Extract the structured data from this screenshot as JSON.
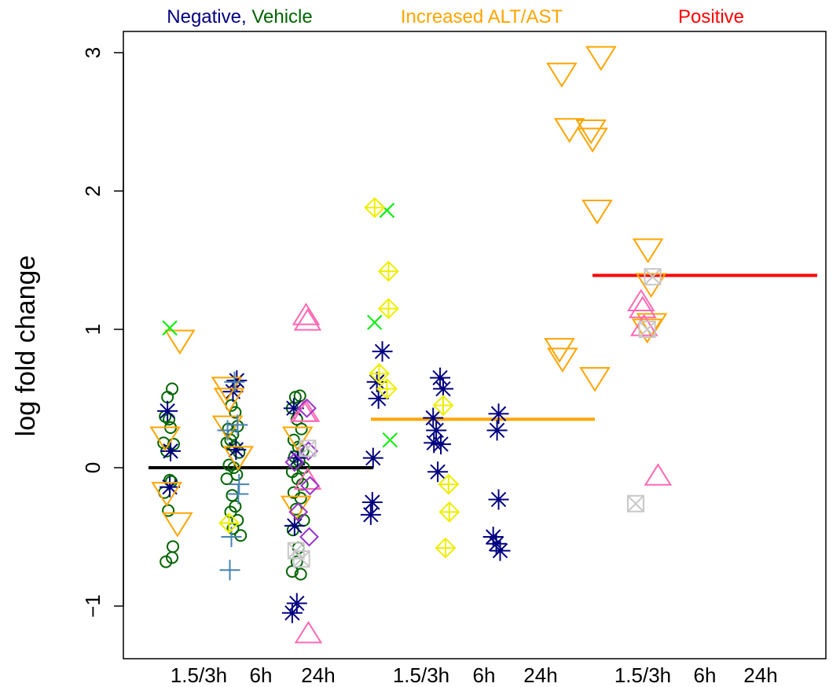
{
  "chart_data": {
    "type": "scatter",
    "ylabel": "log fold change",
    "ylim": [
      -1.4,
      3.15
    ],
    "yticks": [
      -1,
      0,
      1,
      2,
      3
    ],
    "ytick_labels": [
      "−1",
      "0",
      "1",
      "2",
      "3"
    ],
    "grid": false,
    "x_tick_labels": [
      "1.5/3h",
      "6h",
      "24h",
      "1.5/3h",
      "6h",
      "24h",
      "1.5/3h",
      "6h",
      "24h"
    ],
    "group_titles": [
      {
        "parts": [
          {
            "text": "Negative,",
            "color": "#000080"
          },
          {
            "text": "Vehicle",
            "color": "#006400"
          }
        ]
      },
      {
        "parts": [
          {
            "text": "Increased ALT/AST",
            "color": "#FFA500"
          }
        ]
      },
      {
        "parts": [
          {
            "text": "Positive",
            "color": "#FF0000"
          }
        ]
      }
    ],
    "median_lines": [
      {
        "group": "Negative, Vehicle",
        "y": 0.0,
        "color": "#000000"
      },
      {
        "group": "Increased ALT/AST",
        "y": 0.35,
        "color": "#FFA500"
      },
      {
        "group": "Positive",
        "y": 1.39,
        "color": "#FF0000"
      }
    ],
    "marker_colors": {
      "circle": "#006400",
      "asterisk": "#000080",
      "triangle-down": "#FFA500",
      "triangle-up": "#FF69B4",
      "cross": "#00EE00",
      "plus": "#4682B4",
      "diamond-plus": "#EEEE00",
      "diamond": "#9932CC",
      "square-x": "#C8C8C8"
    },
    "points": [
      {
        "x": 0.93,
        "y": 0.51,
        "shape": "circle"
      },
      {
        "x": 0.99,
        "y": 0.57,
        "shape": "circle"
      },
      {
        "x": 0.9,
        "y": 0.37,
        "shape": "circle"
      },
      {
        "x": 0.97,
        "y": 0.29,
        "shape": "circle"
      },
      {
        "x": 0.95,
        "y": 0.35,
        "shape": "circle"
      },
      {
        "x": 0.88,
        "y": 0.18,
        "shape": "circle"
      },
      {
        "x": 1.01,
        "y": 0.17,
        "shape": "circle"
      },
      {
        "x": 0.92,
        "y": 0.12,
        "shape": "circle"
      },
      {
        "x": 0.98,
        "y": -0.1,
        "shape": "circle"
      },
      {
        "x": 0.89,
        "y": -0.18,
        "shape": "circle"
      },
      {
        "x": 0.94,
        "y": -0.31,
        "shape": "circle"
      },
      {
        "x": 1.0,
        "y": -0.57,
        "shape": "circle"
      },
      {
        "x": 0.99,
        "y": -0.65,
        "shape": "circle"
      },
      {
        "x": 0.91,
        "y": -0.68,
        "shape": "circle"
      },
      {
        "x": 0.96,
        "y": -0.09,
        "shape": "circle"
      },
      {
        "x": 1.76,
        "y": 0.45,
        "shape": "circle"
      },
      {
        "x": 1.81,
        "y": 0.4,
        "shape": "circle"
      },
      {
        "x": 1.72,
        "y": 0.28,
        "shape": "circle"
      },
      {
        "x": 1.78,
        "y": 0.24,
        "shape": "circle"
      },
      {
        "x": 1.84,
        "y": 0.3,
        "shape": "circle"
      },
      {
        "x": 1.7,
        "y": 0.18,
        "shape": "circle"
      },
      {
        "x": 1.75,
        "y": 0.2,
        "shape": "circle"
      },
      {
        "x": 1.8,
        "y": 0.15,
        "shape": "circle"
      },
      {
        "x": 1.86,
        "y": 0.11,
        "shape": "circle"
      },
      {
        "x": 1.73,
        "y": 0.02,
        "shape": "circle"
      },
      {
        "x": 1.79,
        "y": 0.0,
        "shape": "circle"
      },
      {
        "x": 1.7,
        "y": -0.08,
        "shape": "circle"
      },
      {
        "x": 1.83,
        "y": -0.05,
        "shape": "circle"
      },
      {
        "x": 1.77,
        "y": -0.2,
        "shape": "circle"
      },
      {
        "x": 1.81,
        "y": -0.28,
        "shape": "circle"
      },
      {
        "x": 1.75,
        "y": -0.32,
        "shape": "circle"
      },
      {
        "x": 1.84,
        "y": -0.38,
        "shape": "circle"
      },
      {
        "x": 1.78,
        "y": -0.44,
        "shape": "circle"
      },
      {
        "x": 1.88,
        "y": -0.49,
        "shape": "circle"
      },
      {
        "x": 2.59,
        "y": 0.51,
        "shape": "circle"
      },
      {
        "x": 2.65,
        "y": 0.52,
        "shape": "circle"
      },
      {
        "x": 2.55,
        "y": 0.43,
        "shape": "circle"
      },
      {
        "x": 2.61,
        "y": 0.35,
        "shape": "circle"
      },
      {
        "x": 2.67,
        "y": 0.28,
        "shape": "circle"
      },
      {
        "x": 2.57,
        "y": 0.2,
        "shape": "circle"
      },
      {
        "x": 2.63,
        "y": 0.15,
        "shape": "circle"
      },
      {
        "x": 2.69,
        "y": 0.12,
        "shape": "circle"
      },
      {
        "x": 2.58,
        "y": 0.08,
        "shape": "circle"
      },
      {
        "x": 2.64,
        "y": 0.05,
        "shape": "circle"
      },
      {
        "x": 2.7,
        "y": 0.0,
        "shape": "circle"
      },
      {
        "x": 2.55,
        "y": -0.03,
        "shape": "circle"
      },
      {
        "x": 2.62,
        "y": -0.08,
        "shape": "circle"
      },
      {
        "x": 2.68,
        "y": -0.12,
        "shape": "circle"
      },
      {
        "x": 2.57,
        "y": -0.18,
        "shape": "circle"
      },
      {
        "x": 2.66,
        "y": -0.22,
        "shape": "circle"
      },
      {
        "x": 2.6,
        "y": -0.3,
        "shape": "circle"
      },
      {
        "x": 2.7,
        "y": -0.38,
        "shape": "circle"
      },
      {
        "x": 2.56,
        "y": -0.45,
        "shape": "circle"
      },
      {
        "x": 2.63,
        "y": -0.58,
        "shape": "circle"
      },
      {
        "x": 2.55,
        "y": -0.75,
        "shape": "circle"
      },
      {
        "x": 2.66,
        "y": -0.77,
        "shape": "circle"
      },
      {
        "x": 2.61,
        "y": -0.68,
        "shape": "circle"
      },
      {
        "x": 0.93,
        "y": 0.41,
        "shape": "asterisk"
      },
      {
        "x": 0.97,
        "y": 0.12,
        "shape": "asterisk"
      },
      {
        "x": 0.96,
        "y": -0.14,
        "shape": "asterisk"
      },
      {
        "x": 1.83,
        "y": 0.63,
        "shape": "asterisk"
      },
      {
        "x": 1.78,
        "y": 0.55,
        "shape": "asterisk"
      },
      {
        "x": 1.82,
        "y": 0.13,
        "shape": "asterisk"
      },
      {
        "x": 2.57,
        "y": 0.43,
        "shape": "asterisk"
      },
      {
        "x": 2.62,
        "y": 0.07,
        "shape": "asterisk"
      },
      {
        "x": 2.58,
        "y": -0.42,
        "shape": "asterisk"
      },
      {
        "x": 2.61,
        "y": -0.98,
        "shape": "asterisk"
      },
      {
        "x": 2.55,
        "y": -1.05,
        "shape": "asterisk"
      },
      {
        "x": 3.6,
        "y": 0.07,
        "shape": "asterisk"
      },
      {
        "x": 3.59,
        "y": -0.25,
        "shape": "asterisk"
      },
      {
        "x": 3.57,
        "y": -0.34,
        "shape": "asterisk"
      },
      {
        "x": 3.65,
        "y": 0.62,
        "shape": "asterisk"
      },
      {
        "x": 3.72,
        "y": 0.84,
        "shape": "asterisk"
      },
      {
        "x": 3.67,
        "y": 0.5,
        "shape": "asterisk"
      },
      {
        "x": 4.38,
        "y": 0.36,
        "shape": "asterisk"
      },
      {
        "x": 4.47,
        "y": 0.65,
        "shape": "asterisk"
      },
      {
        "x": 4.51,
        "y": 0.57,
        "shape": "asterisk"
      },
      {
        "x": 4.42,
        "y": 0.27,
        "shape": "asterisk"
      },
      {
        "x": 4.39,
        "y": 0.18,
        "shape": "asterisk"
      },
      {
        "x": 4.48,
        "y": 0.17,
        "shape": "asterisk"
      },
      {
        "x": 4.44,
        "y": -0.03,
        "shape": "asterisk"
      },
      {
        "x": 5.23,
        "y": 0.39,
        "shape": "asterisk"
      },
      {
        "x": 5.21,
        "y": 0.27,
        "shape": "asterisk"
      },
      {
        "x": 5.23,
        "y": -0.23,
        "shape": "asterisk"
      },
      {
        "x": 5.16,
        "y": -0.5,
        "shape": "asterisk"
      },
      {
        "x": 5.2,
        "y": -0.55,
        "shape": "asterisk"
      },
      {
        "x": 5.25,
        "y": -0.6,
        "shape": "asterisk"
      },
      {
        "x": 0.9,
        "y": 0.22,
        "shape": "triangle-down"
      },
      {
        "x": 0.92,
        "y": -0.18,
        "shape": "triangle-down"
      },
      {
        "x": 1.06,
        "y": -0.4,
        "shape": "triangle-down"
      },
      {
        "x": 1.09,
        "y": 0.92,
        "shape": "triangle-down"
      },
      {
        "x": 1.7,
        "y": 0.58,
        "shape": "triangle-down"
      },
      {
        "x": 1.73,
        "y": 0.5,
        "shape": "triangle-down"
      },
      {
        "x": 1.71,
        "y": 0.3,
        "shape": "triangle-down"
      },
      {
        "x": 1.85,
        "y": 0.08,
        "shape": "triangle-down"
      },
      {
        "x": 2.6,
        "y": -0.28,
        "shape": "triangle-down"
      },
      {
        "x": 2.62,
        "y": 0.22,
        "shape": "triangle-down"
      },
      {
        "x": 6.05,
        "y": 2.85,
        "shape": "triangle-down"
      },
      {
        "x": 6.15,
        "y": 2.45,
        "shape": "triangle-down"
      },
      {
        "x": 6.56,
        "y": 2.97,
        "shape": "triangle-down"
      },
      {
        "x": 6.43,
        "y": 2.44,
        "shape": "triangle-down"
      },
      {
        "x": 6.45,
        "y": 2.38,
        "shape": "triangle-down"
      },
      {
        "x": 6.51,
        "y": 1.86,
        "shape": "triangle-down"
      },
      {
        "x": 6.02,
        "y": 0.86,
        "shape": "triangle-down"
      },
      {
        "x": 6.06,
        "y": 0.79,
        "shape": "triangle-down"
      },
      {
        "x": 6.48,
        "y": 0.65,
        "shape": "triangle-down"
      },
      {
        "x": 7.17,
        "y": 1.58,
        "shape": "triangle-down"
      },
      {
        "x": 7.22,
        "y": 1.04,
        "shape": "triangle-down"
      },
      {
        "x": 7.16,
        "y": 1.0,
        "shape": "triangle-down"
      },
      {
        "x": 7.21,
        "y": 1.33,
        "shape": "triangle-down"
      },
      {
        "x": 2.73,
        "y": 1.1,
        "shape": "triangle-up"
      },
      {
        "x": 2.75,
        "y": 1.06,
        "shape": "triangle-up"
      },
      {
        "x": 2.7,
        "y": 0.4,
        "shape": "triangle-up"
      },
      {
        "x": 2.73,
        "y": 0.4,
        "shape": "triangle-up"
      },
      {
        "x": 2.75,
        "y": -0.09,
        "shape": "triangle-up"
      },
      {
        "x": 2.76,
        "y": -1.2,
        "shape": "triangle-up"
      },
      {
        "x": 7.08,
        "y": 1.2,
        "shape": "triangle-up"
      },
      {
        "x": 7.1,
        "y": 1.15,
        "shape": "triangle-up"
      },
      {
        "x": 7.12,
        "y": 1.02,
        "shape": "triangle-up"
      },
      {
        "x": 7.3,
        "y": -0.06,
        "shape": "triangle-up"
      },
      {
        "x": 0.96,
        "y": 1.01,
        "shape": "cross"
      },
      {
        "x": 3.78,
        "y": 1.86,
        "shape": "cross"
      },
      {
        "x": 3.62,
        "y": 1.05,
        "shape": "cross"
      },
      {
        "x": 3.82,
        "y": 0.2,
        "shape": "cross"
      },
      {
        "x": 1.8,
        "y": 0.62,
        "shape": "plus"
      },
      {
        "x": 1.71,
        "y": 0.27,
        "shape": "plus"
      },
      {
        "x": 1.84,
        "y": 0.31,
        "shape": "plus"
      },
      {
        "x": 1.86,
        "y": -0.12,
        "shape": "plus"
      },
      {
        "x": 1.85,
        "y": -0.19,
        "shape": "plus"
      },
      {
        "x": 1.76,
        "y": -0.5,
        "shape": "plus"
      },
      {
        "x": 1.74,
        "y": -0.74,
        "shape": "plus"
      },
      {
        "x": 3.62,
        "y": 1.88,
        "shape": "diamond-plus"
      },
      {
        "x": 3.8,
        "y": 1.42,
        "shape": "diamond-plus"
      },
      {
        "x": 3.8,
        "y": 1.15,
        "shape": "diamond-plus"
      },
      {
        "x": 3.68,
        "y": 0.68,
        "shape": "diamond-plus"
      },
      {
        "x": 3.78,
        "y": 0.57,
        "shape": "diamond-plus"
      },
      {
        "x": 4.51,
        "y": 0.45,
        "shape": "diamond-plus"
      },
      {
        "x": 4.58,
        "y": -0.12,
        "shape": "diamond-plus"
      },
      {
        "x": 4.59,
        "y": -0.32,
        "shape": "diamond-plus"
      },
      {
        "x": 4.54,
        "y": -0.58,
        "shape": "diamond-plus"
      },
      {
        "x": 1.73,
        "y": -0.4,
        "shape": "diamond-plus"
      },
      {
        "x": 2.74,
        "y": 0.43,
        "shape": "diamond"
      },
      {
        "x": 2.76,
        "y": 0.12,
        "shape": "diamond"
      },
      {
        "x": 2.58,
        "y": 0.04,
        "shape": "diamond"
      },
      {
        "x": 2.78,
        "y": -0.13,
        "shape": "diamond"
      },
      {
        "x": 2.63,
        "y": -0.32,
        "shape": "diamond"
      },
      {
        "x": 2.77,
        "y": -0.5,
        "shape": "diamond"
      },
      {
        "x": 2.6,
        "y": -0.6,
        "shape": "square-x"
      },
      {
        "x": 2.67,
        "y": -0.66,
        "shape": "square-x"
      },
      {
        "x": 2.75,
        "y": 0.14,
        "shape": "square-x"
      },
      {
        "x": 7.23,
        "y": 1.38,
        "shape": "square-x"
      },
      {
        "x": 7.16,
        "y": 1.0,
        "shape": "square-x"
      },
      {
        "x": 7.01,
        "y": -0.26,
        "shape": "square-x"
      }
    ]
  }
}
